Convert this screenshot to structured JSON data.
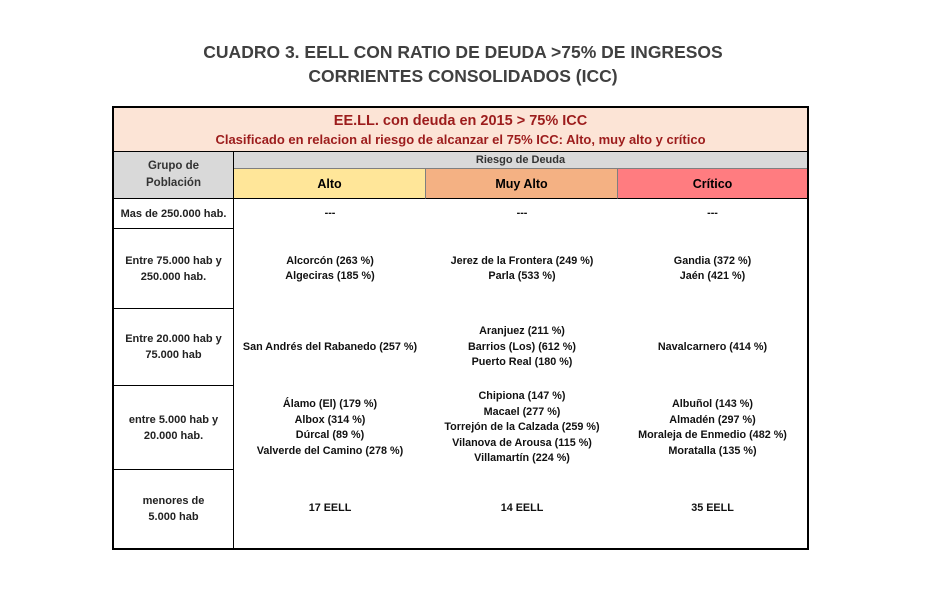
{
  "title": {
    "line1": "CUADRO 3. EELL CON RATIO DE DEUDA >75% DE INGRESOS",
    "line2": "CORRIENTES CONSOLIDADOS (ICC)"
  },
  "table": {
    "banner": {
      "line1": "EE.LL. con deuda en 2015 > 75% ICC",
      "line2": "Clasificado en relacion al riesgo de alcanzar el 75% ICC: Alto, muy alto y crítico"
    },
    "group_header": "Grupo de Población",
    "risk_header": "Riesgo de Deuda",
    "levels": [
      "Alto",
      "Muy Alto",
      "Crítico"
    ],
    "colors": {
      "banner_bg": "#fce4d6",
      "banner_text": "#9c1c1c",
      "header_grey": "#d9d9d9",
      "alto": "#ffe699",
      "muy_alto": "#f4b183",
      "critico": "#ff7c80"
    },
    "rows": [
      {
        "label": "Mas de 250.000 hab.",
        "alto": [
          "---"
        ],
        "muy_alto": [
          "---"
        ],
        "critico": [
          "---"
        ]
      },
      {
        "label": "Entre 75.000 hab y 250.000 hab.",
        "alto": [
          "Alcorcón  (263 %)",
          "Algeciras  (185 %)"
        ],
        "muy_alto": [
          "Jerez de la Frontera  (249 %)",
          "Parla  (533 %)"
        ],
        "critico": [
          "Gandia  (372 %)",
          "Jaén  (421 %)"
        ]
      },
      {
        "label": "Entre 20.000 hab y 75.000 hab",
        "alto": [
          "San Andrés del Rabanedo  (257 %)"
        ],
        "muy_alto": [
          "Aranjuez  (211 %)",
          "Barrios  (Los)  (612 %)",
          "Puerto Real  (180 %)"
        ],
        "critico": [
          "Navalcarnero  (414 %)"
        ]
      },
      {
        "label": "entre 5.000 hab y 20.000 hab.",
        "alto": [
          "Álamo  (El)  (179 %)",
          "Albox  (314 %)",
          "Dúrcal  (89 %)",
          "Valverde del Camino  (278 %)"
        ],
        "muy_alto": [
          "Chipiona  (147 %)",
          "Macael  (277 %)",
          "Torrejón de la Calzada  (259 %)",
          "Vilanova de Arousa  (115 %)",
          "Villamartín  (224 %)"
        ],
        "critico": [
          "Albuñol  (143 %)",
          "Almadén  (297 %)",
          "Moraleja de Enmedio  (482 %)",
          "Moratalla  (135 %)"
        ]
      },
      {
        "label": "menores de 5.000 hab",
        "alto": [
          "17 EELL"
        ],
        "muy_alto": [
          "14 EELL"
        ],
        "critico": [
          "35 EELL"
        ]
      }
    ]
  }
}
